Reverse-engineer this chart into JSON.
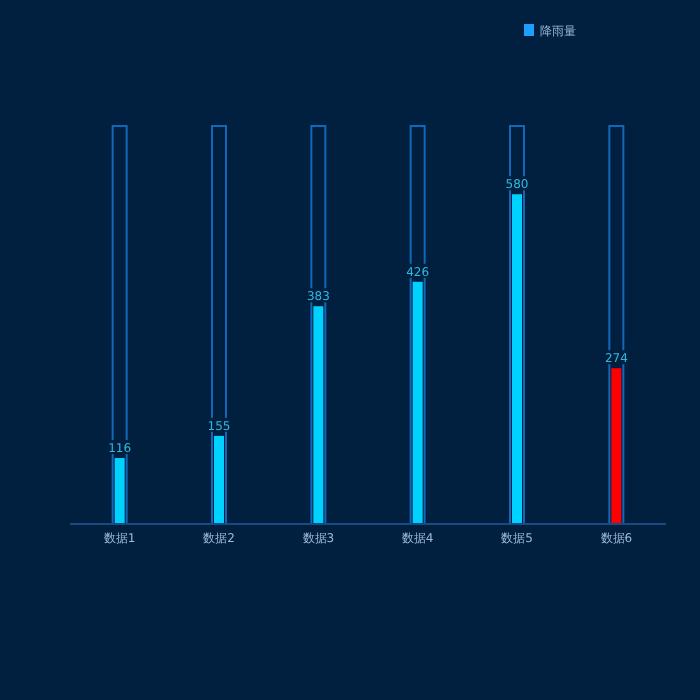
{
  "chart_data": {
    "type": "bar",
    "categories": [
      "数据1",
      "数据2",
      "数据3",
      "数据4",
      "数据5",
      "数据6"
    ],
    "series": [
      {
        "type": "bar",
        "color": "#1267b8",
        "values": [
          700,
          700,
          700,
          700,
          700,
          700
        ],
        "value_labels": [
          null,
          null,
          null,
          null,
          null,
          null
        ]
      },
      {
        "name": "降雨量",
        "color": "#1e9fff",
        "colors": [
          "#00d2ff",
          "#00d2ff",
          "#00d2ff",
          "#00d2ff",
          "#00d2ff",
          "#ff0000"
        ],
        "values": [
          116,
          155,
          383,
          426,
          580,
          274
        ],
        "value_labels": [
          "116",
          "155",
          "383",
          "426",
          "580",
          "274"
        ]
      }
    ],
    "ylim": [
      0,
      700
    ],
    "legend": "top right"
  }
}
